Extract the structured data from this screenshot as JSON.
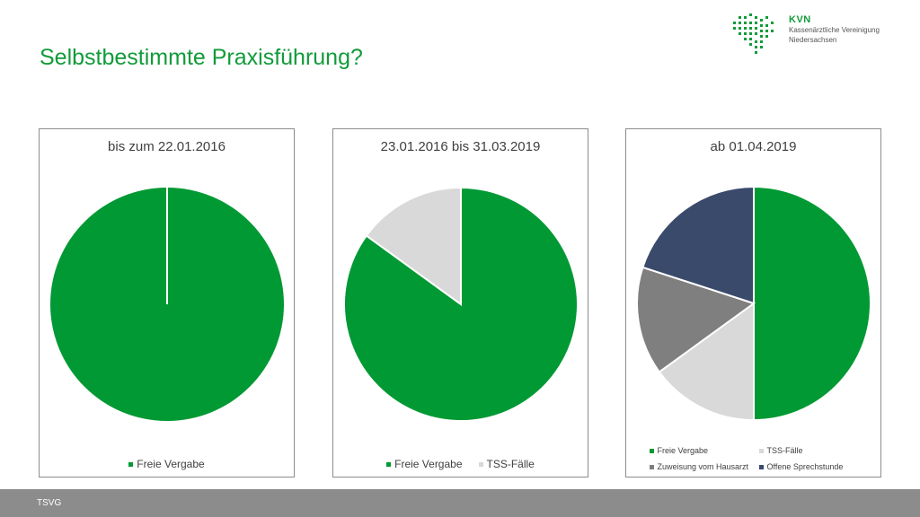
{
  "slide": {
    "title": "Selbstbestimmte Praxisführung?",
    "footer_label": "TSVG"
  },
  "logo": {
    "abbr": "KVN",
    "line1": "Kassenärztliche Vereinigung",
    "line2": "Niedersachsen",
    "color": "#129b3a"
  },
  "chart_data": [
    {
      "type": "pie",
      "title": "bis zum 22.01.2016",
      "categories": [
        "Freie Vergabe"
      ],
      "values": [
        100
      ],
      "colors": [
        "#009933"
      ],
      "legend_position": "bottom"
    },
    {
      "type": "pie",
      "title": "23.01.2016 bis 31.03.2019",
      "categories": [
        "Freie Vergabe",
        "TSS-Fälle"
      ],
      "values": [
        85,
        15
      ],
      "colors": [
        "#009933",
        "#d9d9d9"
      ],
      "legend_position": "bottom"
    },
    {
      "type": "pie",
      "title": "ab 01.04.2019",
      "categories": [
        "Freie Vergabe",
        "TSS-Fälle",
        "Zuweisung vom Hausarzt",
        "Offene Sprechstunde"
      ],
      "values": [
        50,
        15,
        15,
        20
      ],
      "colors": [
        "#009933",
        "#d9d9d9",
        "#7f7f7f",
        "#3a4a6b"
      ],
      "legend_position": "bottom"
    }
  ]
}
